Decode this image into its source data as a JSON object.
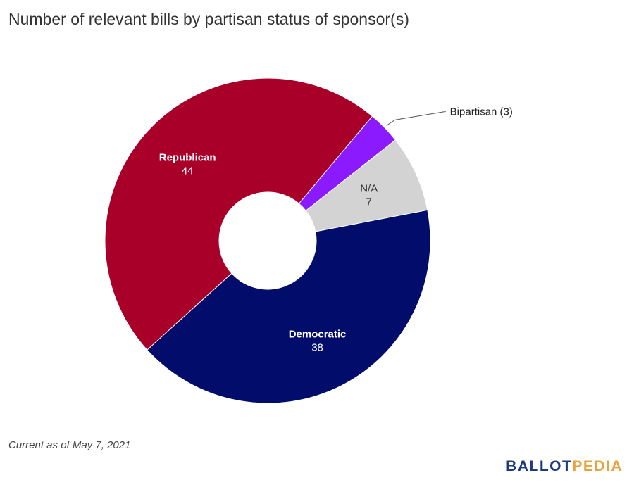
{
  "title": "Number of relevant bills by partisan status of sponsor(s)",
  "footnote": "Current as of May 7, 2021",
  "logo": {
    "part1": "BALLOT",
    "part2": "PEDIA",
    "color1": "#1e3a7e",
    "color2": "#e8a33d"
  },
  "chart_data": {
    "type": "pie",
    "donut": true,
    "slices": [
      {
        "name": "Bipartisan",
        "value": 3,
        "color": "#8b1aff",
        "label_style": "callout",
        "label_text": "Bipartisan (3)"
      },
      {
        "name": "N/A",
        "value": 7,
        "color": "#d3d3d3",
        "label_style": "inside",
        "label_color": "#333333"
      },
      {
        "name": "Democratic",
        "value": 38,
        "color": "#020c6b",
        "label_style": "inside",
        "label_color": "#ffffff"
      },
      {
        "name": "Republican",
        "value": 44,
        "color": "#a80029",
        "label_style": "inside",
        "label_color": "#ffffff"
      }
    ]
  }
}
